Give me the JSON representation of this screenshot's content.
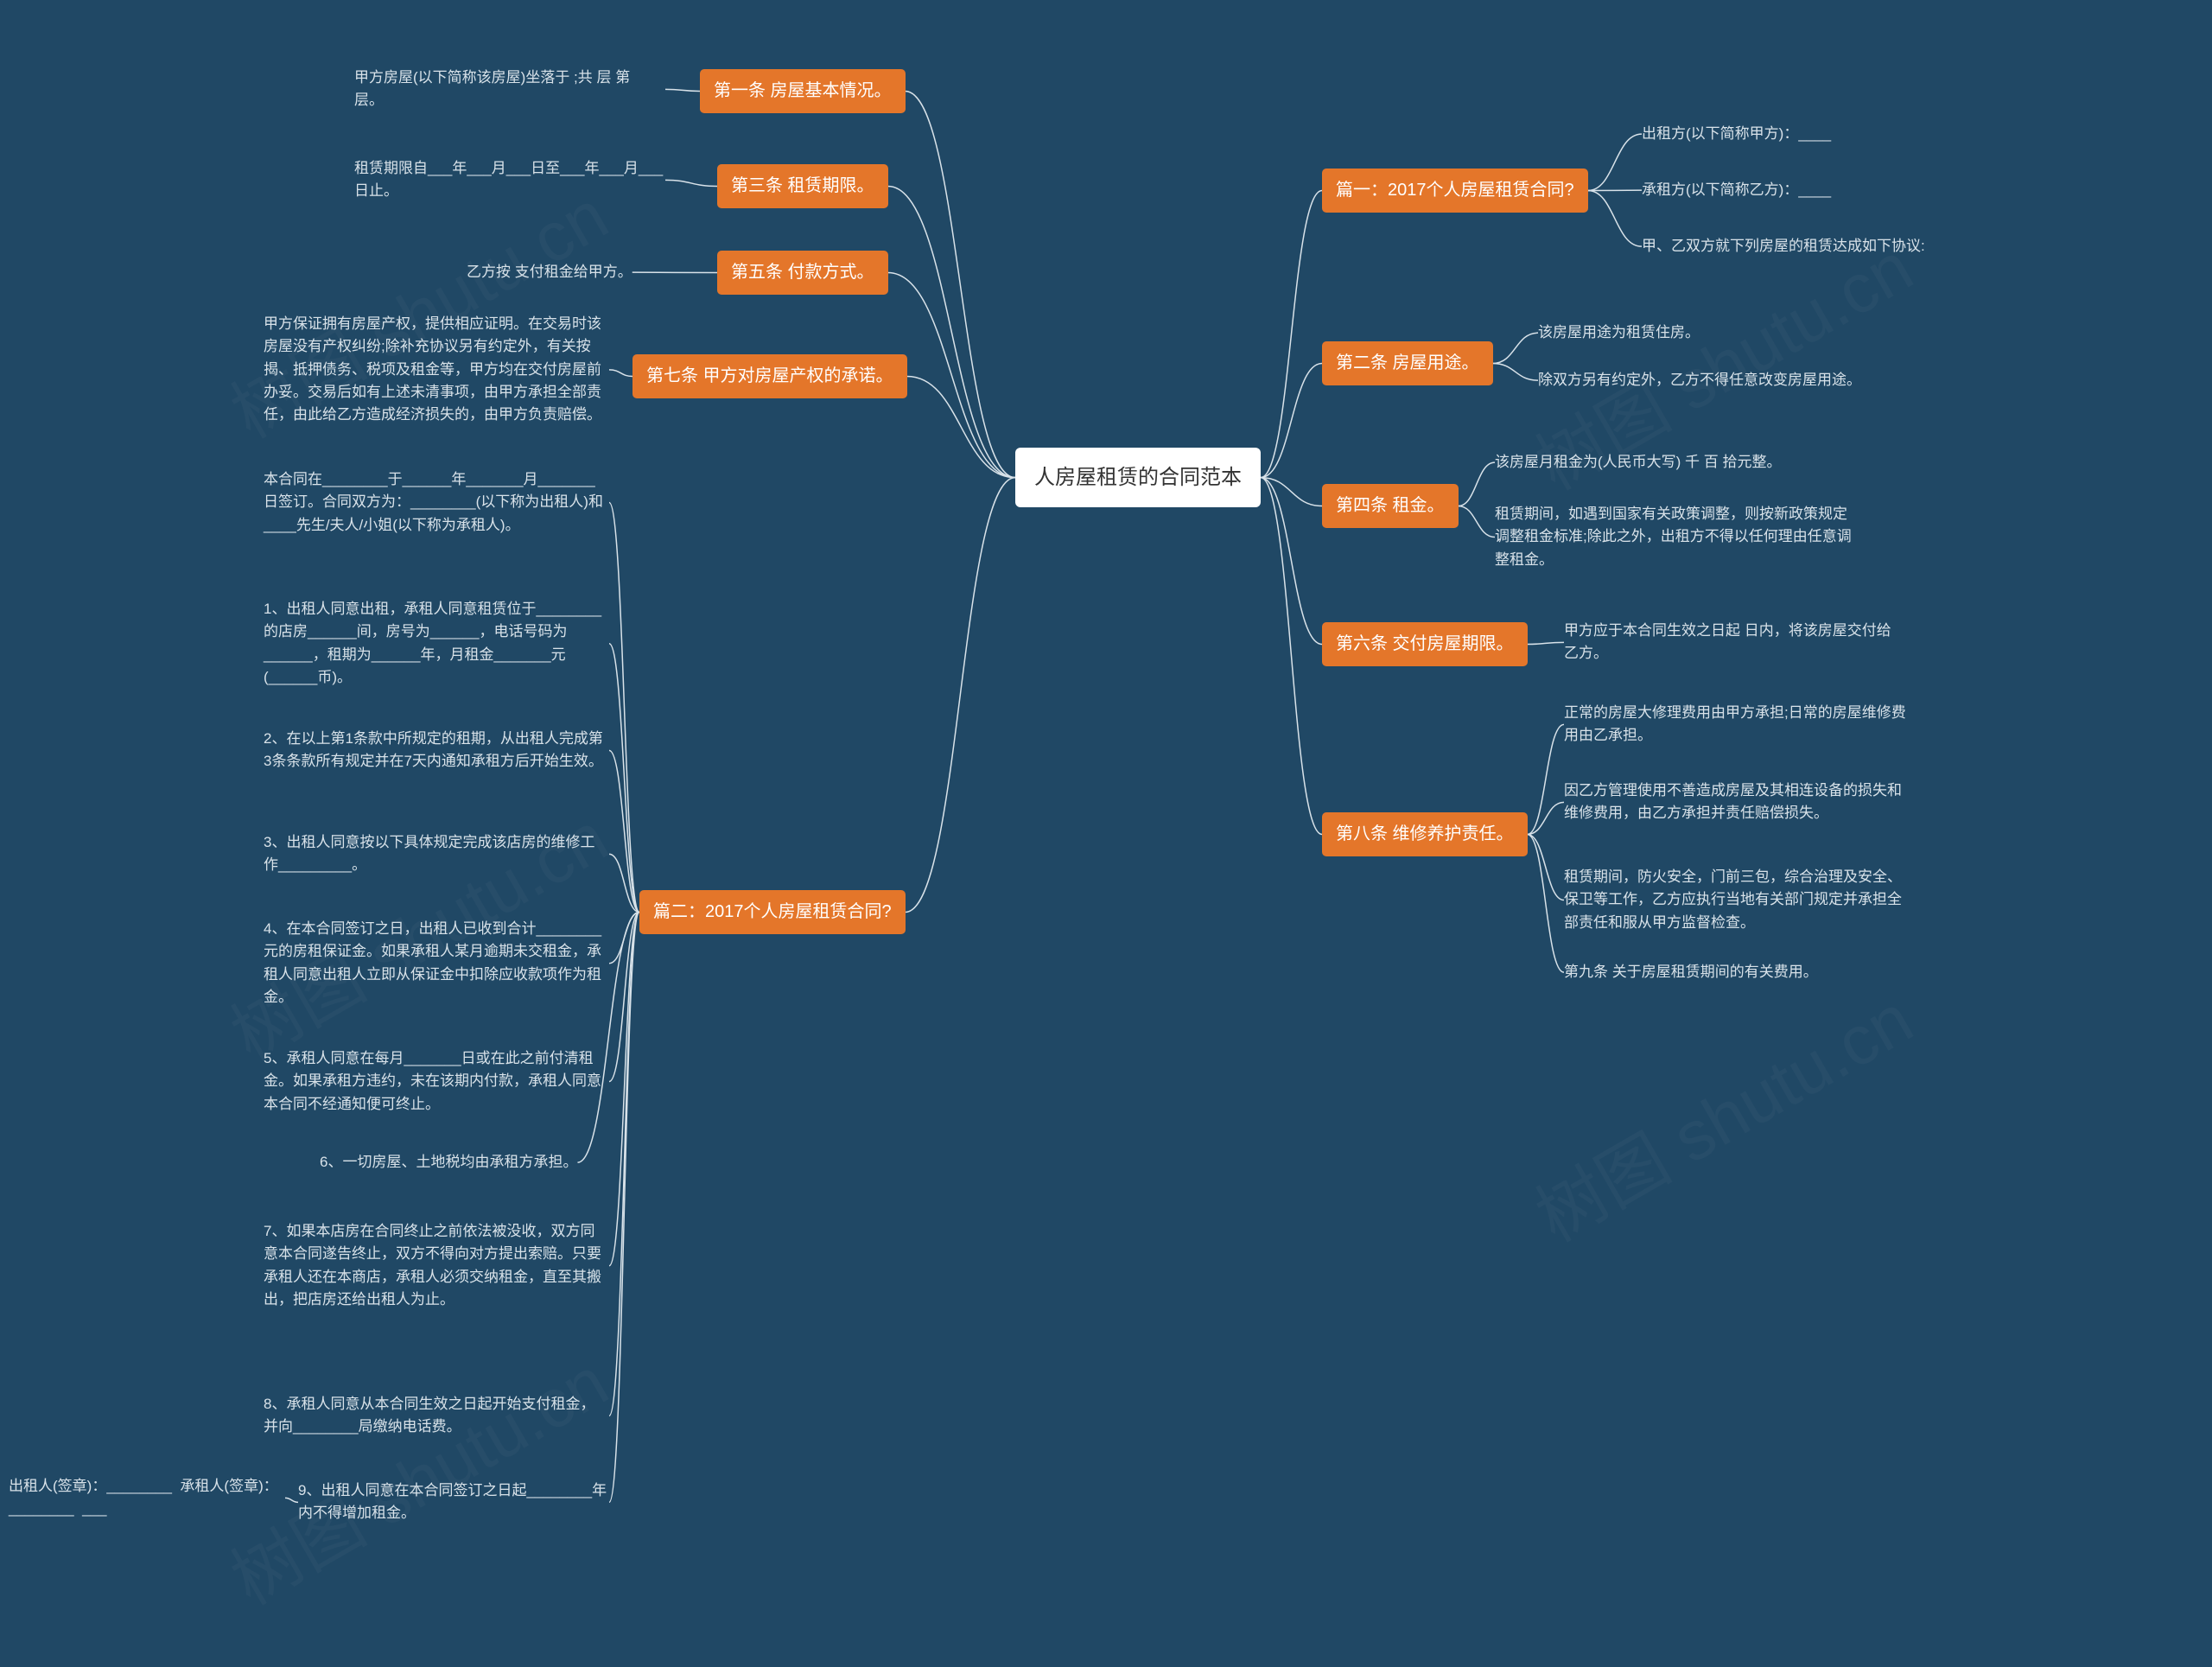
{
  "colors": {
    "bg": "#204865",
    "root_bg": "#ffffff",
    "root_fg": "#333333",
    "branch_bg": "#e4762a",
    "branch_fg": "#ffffff",
    "leaf_fg": "#d8e2e9",
    "wire": "#d8e2e9",
    "wire_width": 1.5,
    "watermark_fg": "rgba(255,255,255,0.03)"
  },
  "fonts": {
    "root_size": 24,
    "branch_size": 20,
    "leaf_size": 17,
    "family": "Microsoft YaHei, PingFang SC, sans-serif"
  },
  "watermark_text": "树图 shutu.cn",
  "root": "人房屋租赁的合同范本",
  "left_branches": [
    {
      "label": "第一条 房屋基本情况。",
      "leaves": [
        "甲方房屋(以下简称该房屋)坐落于 ;共 层 第   层。"
      ]
    },
    {
      "label": "第三条 租赁期限。",
      "leaves": [
        "租赁期限自___年___月___日至___年___月___日止。"
      ]
    },
    {
      "label": "第五条 付款方式。",
      "leaves": [
        "乙方按 支付租金给甲方。"
      ]
    },
    {
      "label": "第七条 甲方对房屋产权的承诺。",
      "leaves": [
        "甲方保证拥有房屋产权，提供相应证明。在交易时该房屋没有产权纠纷;除补充协议另有约定外，有关按揭、抵押债务、税项及租金等，甲方均在交付房屋前办妥。交易后如有上述未清事项，由甲方承担全部责任，由此给乙方造成经济损失的，由甲方负责赔偿。"
      ]
    },
    {
      "label": "篇二：2017个人房屋租赁合同?",
      "leaves": [
        "本合同在________于______年_______月_______日签订。合同双方为：________(以下称为出租人)和____先生/夫人/小姐(以下称为承租人)。",
        "1、出租人同意出租，承租人同意租赁位于________的店房______间，房号为______，电话号码为______，租期为______年，月租金_______元(______币)。",
        "2、在以上第1条款中所规定的租期，从出租人完成第3条条款所有规定并在7天内通知承租方后开始生效。",
        "3、出租人同意按以下具体规定完成该店房的维修工作_________。",
        "4、在本合同签订之日，出租人已收到合计________元的房租保证金。如果承租人某月逾期未交租金，承租人同意出租人立即从保证金中扣除应收款项作为租金。",
        "5、承租人同意在每月_______日或在此之前付清租金。如果承租方违约，未在该期内付款，承租人同意本合同不经通知便可终止。",
        "6、一切房屋、土地税均由承租方承担。",
        "7、如果本店房在合同终止之前依法被没收，双方同意本合同遂告终止，双方不得向对方提出索赔。只要承租人还在本商店，承租人必须交纳租金，直至其搬出，把店房还给出租人为止。",
        "8、承租人同意从本合同生效之日起开始支付租金，并向________局缴纳电话费。",
        "9、出租人同意在本合同签订之日起________年内不得增加租金。"
      ],
      "extra_leaf_after": "出租人(签章)：________  承租人(签章)：________  ___"
    }
  ],
  "right_branches": [
    {
      "label": "篇一：2017个人房屋租赁合同?",
      "leaves": [
        "出租方(以下简称甲方)：____",
        "承租方(以下简称乙方)：____",
        "甲、乙双方就下列房屋的租赁达成如下协议:"
      ]
    },
    {
      "label": "第二条 房屋用途。",
      "leaves": [
        "该房屋用途为租赁住房。",
        "除双方另有约定外，乙方不得任意改变房屋用途。"
      ]
    },
    {
      "label": "第四条 租金。",
      "leaves": [
        "该房屋月租金为(人民币大写) 千 百 拾元整。",
        "租赁期间，如遇到国家有关政策调整，则按新政策规定调整租金标准;除此之外，出租方不得以任何理由任意调整租金。"
      ]
    },
    {
      "label": "第六条 交付房屋期限。",
      "leaves": [
        "甲方应于本合同生效之日起 日内，将该房屋交付给乙方。"
      ]
    },
    {
      "label": "第八条 维修养护责任。",
      "leaves": [
        "正常的房屋大修理费用由甲方承担;日常的房屋维修费用由乙承担。",
        "因乙方管理使用不善造成房屋及其相连设备的损失和维修费用，由乙方承担并责任赔偿损失。",
        "租赁期间，防火安全，门前三包，综合治理及安全、保卫等工作，乙方应执行当地有关部门规定并承担全部责任和服从甲方监督检查。",
        "第九条 关于房屋租赁期间的有关费用。"
      ]
    }
  ]
}
